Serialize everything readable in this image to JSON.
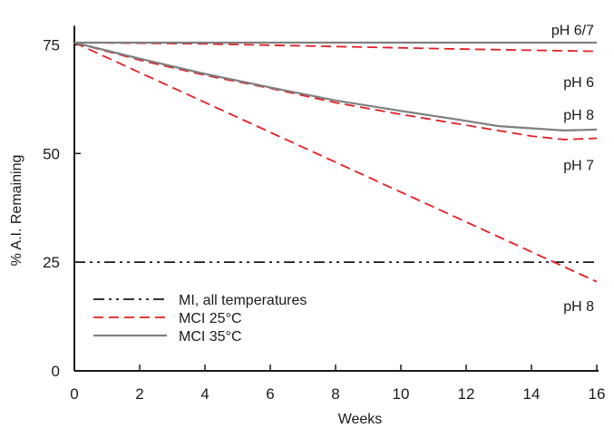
{
  "chart_data": {
    "type": "line",
    "xlabel": "Weeks",
    "ylabel": "% A.I. Remaining",
    "xlim": [
      0,
      16
    ],
    "ylim": [
      0,
      80
    ],
    "xticks": [
      "0",
      "2",
      "4",
      "6",
      "8",
      "10",
      "12",
      "14",
      "16"
    ],
    "yticks": [
      "0",
      "25",
      "50",
      "75"
    ],
    "grid": false,
    "legend_position": "bottom-left",
    "series": [
      {
        "name": "MI, all temperatures",
        "style": "dash-dot-dot",
        "color": "#1a1a1a",
        "points": [
          [
            0,
            25
          ],
          [
            16,
            25
          ]
        ]
      },
      {
        "name": "MCI 25°C",
        "style": "dashed",
        "color": "#e31e24",
        "points": [
          [
            0,
            75.5
          ],
          [
            4,
            75.2
          ],
          [
            8,
            74.6
          ],
          [
            12,
            74
          ],
          [
            16,
            73.5
          ]
        ]
      },
      {
        "name": "MCI 25°C",
        "style": "dashed",
        "color": "#e31e24",
        "points": [
          [
            0,
            75.5
          ],
          [
            2,
            71.5
          ],
          [
            4,
            68
          ],
          [
            6,
            65
          ],
          [
            8,
            61.7
          ],
          [
            10,
            59
          ],
          [
            12,
            56.5
          ],
          [
            14,
            54
          ],
          [
            15,
            53.2
          ],
          [
            16,
            53.5
          ]
        ]
      },
      {
        "name": "MCI 25°C",
        "style": "dashed",
        "color": "#e31e24",
        "points": [
          [
            0,
            75.5
          ],
          [
            16,
            20.5
          ]
        ]
      },
      {
        "name": "MCI 35°C",
        "style": "solid",
        "color": "#7f7f7f",
        "points": [
          [
            0,
            75.5
          ],
          [
            16,
            75.5
          ]
        ]
      },
      {
        "name": "MCI 35°C",
        "style": "solid",
        "color": "#7f7f7f",
        "points": [
          [
            0,
            75.5
          ],
          [
            2,
            71.8
          ],
          [
            4,
            68.3
          ],
          [
            6,
            65.2
          ],
          [
            8,
            62.2
          ],
          [
            10,
            59.8
          ],
          [
            12,
            57.5
          ],
          [
            13,
            56.3
          ],
          [
            15,
            55.3
          ],
          [
            16,
            55.5
          ]
        ]
      }
    ],
    "annotations": [
      {
        "text": "pH 6/7",
        "x": 16,
        "y": 78.5
      },
      {
        "text": "pH 6",
        "x": 16,
        "y": 66.5
      },
      {
        "text": "pH 8",
        "x": 16,
        "y": 59
      },
      {
        "text": "pH 7",
        "x": 16,
        "y": 47.5
      },
      {
        "text": "pH 8",
        "x": 16,
        "y": 15
      }
    ],
    "legend": [
      {
        "label": "MI, all temperatures",
        "style": "dash-dot-dot",
        "color": "#1a1a1a"
      },
      {
        "label": "MCI 25°C",
        "style": "dashed",
        "color": "#e31e24"
      },
      {
        "label": "MCI 35°C",
        "style": "solid",
        "color": "#7f7f7f"
      }
    ]
  }
}
